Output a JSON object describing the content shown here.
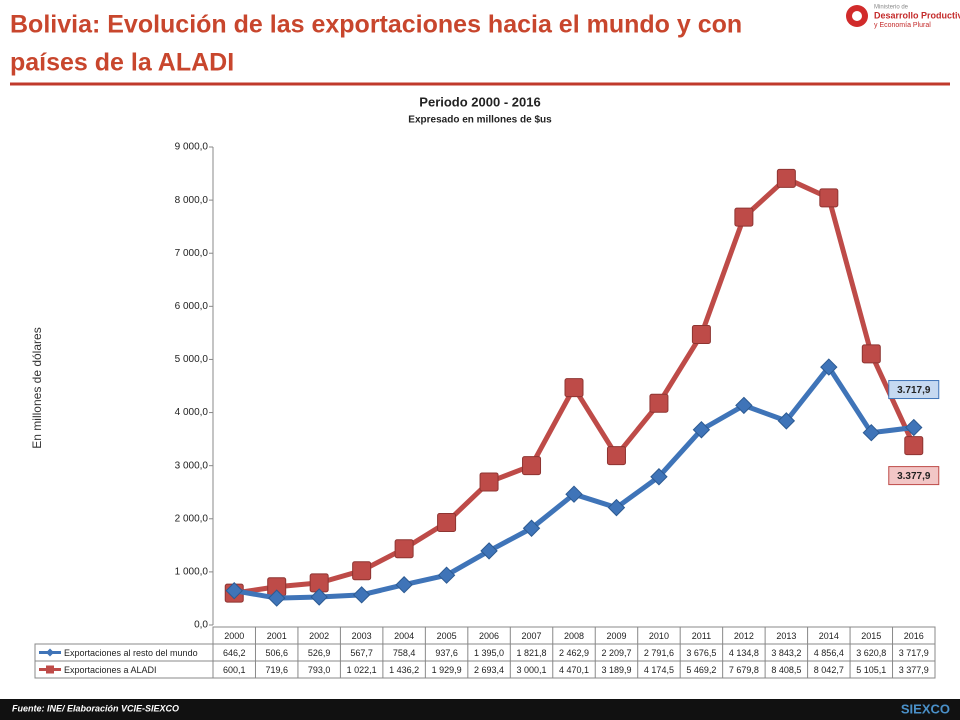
{
  "header": {
    "title_line1": "Bolivia: Evolución de las exportaciones hacia el mundo y con",
    "title_line2": "países de la ALADI",
    "logo_top": "Ministerio de",
    "logo_main": "Desarrollo Productivo",
    "logo_sub": "y Economía Plural"
  },
  "chart_data": {
    "type": "line",
    "title": "Periodo 2000 - 2016",
    "subtitle": "Expresado en millones de $us",
    "y_label": "En millones de dólares",
    "categories": [
      "2000",
      "2001",
      "2002",
      "2003",
      "2004",
      "2005",
      "2006",
      "2007",
      "2008",
      "2009",
      "2010",
      "2011",
      "2012",
      "2013",
      "2014",
      "2015",
      "2016"
    ],
    "ylim": [
      0,
      9000
    ],
    "yticks": [
      {
        "value": 0,
        "label": "0,0"
      },
      {
        "value": 1000,
        "label": "1 000,0"
      },
      {
        "value": 2000,
        "label": "2 000,0"
      },
      {
        "value": 3000,
        "label": "3 000,0"
      },
      {
        "value": 4000,
        "label": "4 000,0"
      },
      {
        "value": 5000,
        "label": "5 000,0"
      },
      {
        "value": 6000,
        "label": "6 000,0"
      },
      {
        "value": 7000,
        "label": "7 000,0"
      },
      {
        "value": 8000,
        "label": "8 000,0"
      },
      {
        "value": 9000,
        "label": "9 000,0"
      }
    ],
    "series": [
      {
        "name": "Exportaciones al resto del mundo",
        "color": "#3f74b8",
        "marker": "diamond",
        "values": [
          646.2,
          506.6,
          526.9,
          567.7,
          758.4,
          937.6,
          1395.0,
          1821.8,
          2462.9,
          2209.7,
          2791.6,
          3676.5,
          4134.8,
          3843.2,
          4856.4,
          3620.8,
          3717.9
        ],
        "value_labels": [
          "646,2",
          "506,6",
          "526,9",
          "567,7",
          "758,4",
          "937,6",
          "1 395,0",
          "1 821,8",
          "2 462,9",
          "2 209,7",
          "2 791,6",
          "3 676,5",
          "4 134,8",
          "3 843,2",
          "4 856,4",
          "3 620,8",
          "3 717,9"
        ],
        "end_label": "3.717,9"
      },
      {
        "name": "Exportaciones a ALADI",
        "color": "#be4b48",
        "marker": "square",
        "values": [
          600.1,
          719.6,
          793.0,
          1022.1,
          1436.2,
          1929.9,
          2693.4,
          3000.1,
          4470.1,
          3189.9,
          4174.5,
          5469.2,
          7679.8,
          8408.5,
          8042.7,
          5105.1,
          3377.9
        ],
        "value_labels": [
          "600,1",
          "719,6",
          "793,0",
          "1 022,1",
          "1 436,2",
          "1 929,9",
          "2 693,4",
          "3 000,1",
          "4 470,1",
          "3 189,9",
          "4 174,5",
          "5 469,2",
          "7 679,8",
          "8 408,5",
          "8 042,7",
          "5 105,1",
          "3 377,9"
        ],
        "end_label": "3.377,9"
      }
    ]
  },
  "footer": {
    "source": "Fuente: INE/ Elaboración VCIE-SIEXCO",
    "brand": "SIEXCO"
  }
}
